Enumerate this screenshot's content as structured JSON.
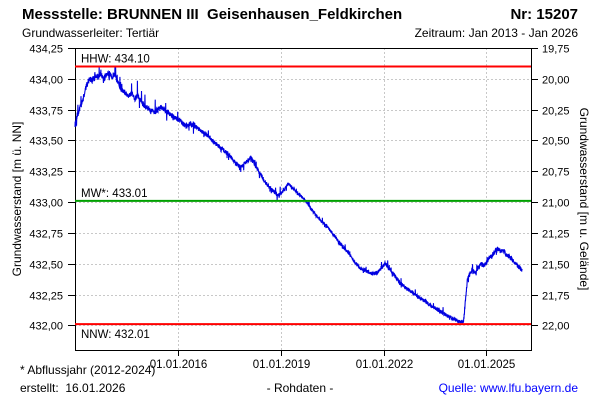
{
  "header": {
    "title": "Messstelle: BRUNNEN III  Geisenhausen_Feldkirchen",
    "number": "Nr: 15207",
    "aquifer": "Grundwasserleiter: Tertiär",
    "period": "Zeitraum: Jan 2013 - Jan 2026"
  },
  "footer": {
    "note": "* Abflussjahr (2012-2024)",
    "created": "erstellt:  16.01.2026",
    "center": "- Rohdaten -",
    "source": "Quelle: www.lfu.bayern.de",
    "source_color": "#0000ff"
  },
  "chart_data": {
    "type": "line",
    "title": "Grundwasserstand Messstelle 15207 BRUNNEN III Geisenhausen_Feldkirchen",
    "xlim_years": [
      2013.0,
      2026.3
    ],
    "x_ticks": [
      [
        2016,
        "01.01.2016"
      ],
      [
        2019,
        "01.01.2019"
      ],
      [
        2022,
        "01.01.2022"
      ],
      [
        2025,
        "01.01.2025"
      ]
    ],
    "y_left": {
      "title": "Grundwasserstand [m ü. NN]",
      "lim": [
        431.8,
        434.25
      ],
      "ticks": [
        [
          434.25,
          "434,25"
        ],
        [
          434.0,
          "434,00"
        ],
        [
          433.75,
          "433,75"
        ],
        [
          433.5,
          "433,50"
        ],
        [
          433.25,
          "433,25"
        ],
        [
          433.0,
          "433,00"
        ],
        [
          432.75,
          "432,75"
        ],
        [
          432.5,
          "432,50"
        ],
        [
          432.25,
          "432,25"
        ],
        [
          432.0,
          "432,00"
        ]
      ]
    },
    "y_right": {
      "title": "Grundwasserstand [m u. Gelände]",
      "ticks": [
        [
          434.25,
          "19,75"
        ],
        [
          434.0,
          "20,00"
        ],
        [
          433.75,
          "20,25"
        ],
        [
          433.5,
          "20,50"
        ],
        [
          433.25,
          "20,75"
        ],
        [
          433.0,
          "21,00"
        ],
        [
          432.75,
          "21,25"
        ],
        [
          432.5,
          "21,50"
        ],
        [
          432.25,
          "21,75"
        ],
        [
          432.0,
          "22,00"
        ]
      ]
    },
    "grid": {
      "color": "#c8c8c8",
      "dash": "2,2"
    },
    "axis_color": "#000000",
    "reference_lines": [
      {
        "name": "HHW",
        "value": 434.1,
        "label": "HHW: 434.10",
        "color": "#ff0000",
        "label_side": "above"
      },
      {
        "name": "MW",
        "value": 433.01,
        "label": "MW*: 433.01",
        "color": "#00a000",
        "label_side": "above"
      },
      {
        "name": "NNW",
        "value": 432.01,
        "label": "NNW: 432.01",
        "color": "#ff0000",
        "label_side": "below"
      }
    ],
    "series": [
      {
        "name": "Rohdaten",
        "color": "#0000e0",
        "clamp": [
          432.0,
          434.1
        ],
        "noise": {
          "seed": 1234,
          "step_years": 0.005
        },
        "anchors": [
          [
            2013.0,
            433.63
          ],
          [
            2013.08,
            433.72
          ],
          [
            2013.17,
            433.78
          ],
          [
            2013.25,
            433.85
          ],
          [
            2013.33,
            433.94
          ],
          [
            2013.42,
            434.0
          ],
          [
            2013.5,
            433.99
          ],
          [
            2013.58,
            434.03
          ],
          [
            2013.67,
            434.01
          ],
          [
            2013.75,
            434.05
          ],
          [
            2013.83,
            433.99
          ],
          [
            2013.92,
            434.03
          ],
          [
            2014.0,
            434.05
          ],
          [
            2014.08,
            434.02
          ],
          [
            2014.17,
            434.04
          ],
          [
            2014.25,
            433.97
          ],
          [
            2014.33,
            433.92
          ],
          [
            2014.42,
            433.9
          ],
          [
            2014.5,
            433.88
          ],
          [
            2014.58,
            433.86
          ],
          [
            2014.67,
            433.89
          ],
          [
            2014.75,
            433.84
          ],
          [
            2014.83,
            433.87
          ],
          [
            2014.92,
            433.82
          ],
          [
            2015.0,
            433.79
          ],
          [
            2015.17,
            433.75
          ],
          [
            2015.33,
            433.73
          ],
          [
            2015.5,
            433.77
          ],
          [
            2015.67,
            433.74
          ],
          [
            2015.83,
            433.7
          ],
          [
            2016.0,
            433.67
          ],
          [
            2016.17,
            433.63
          ],
          [
            2016.25,
            433.62
          ],
          [
            2016.42,
            433.64
          ],
          [
            2016.58,
            433.6
          ],
          [
            2016.75,
            433.56
          ],
          [
            2016.92,
            433.53
          ],
          [
            2017.0,
            433.5
          ],
          [
            2017.25,
            433.44
          ],
          [
            2017.5,
            433.38
          ],
          [
            2017.67,
            433.32
          ],
          [
            2017.83,
            433.28
          ],
          [
            2018.0,
            433.33
          ],
          [
            2018.13,
            433.36
          ],
          [
            2018.25,
            433.3
          ],
          [
            2018.42,
            433.22
          ],
          [
            2018.58,
            433.15
          ],
          [
            2018.75,
            433.1
          ],
          [
            2018.92,
            433.05
          ],
          [
            2019.08,
            433.09
          ],
          [
            2019.21,
            433.15
          ],
          [
            2019.33,
            433.12
          ],
          [
            2019.5,
            433.07
          ],
          [
            2019.67,
            433.03
          ],
          [
            2019.83,
            432.97
          ],
          [
            2020.0,
            432.9
          ],
          [
            2020.17,
            432.85
          ],
          [
            2020.33,
            432.81
          ],
          [
            2020.5,
            432.75
          ],
          [
            2020.67,
            432.69
          ],
          [
            2020.83,
            432.63
          ],
          [
            2021.0,
            432.58
          ],
          [
            2021.17,
            432.51
          ],
          [
            2021.33,
            432.46
          ],
          [
            2021.5,
            432.44
          ],
          [
            2021.67,
            432.42
          ],
          [
            2021.83,
            432.43
          ],
          [
            2021.95,
            432.47
          ],
          [
            2022.05,
            432.5
          ],
          [
            2022.17,
            432.46
          ],
          [
            2022.33,
            432.4
          ],
          [
            2022.5,
            432.34
          ],
          [
            2022.67,
            432.3
          ],
          [
            2022.83,
            432.27
          ],
          [
            2023.0,
            432.23
          ],
          [
            2023.17,
            432.2
          ],
          [
            2023.33,
            432.17
          ],
          [
            2023.5,
            432.14
          ],
          [
            2023.67,
            432.11
          ],
          [
            2023.83,
            432.08
          ],
          [
            2024.0,
            432.06
          ],
          [
            2024.13,
            432.04
          ],
          [
            2024.25,
            432.03
          ],
          [
            2024.33,
            432.02
          ],
          [
            2024.38,
            432.18
          ],
          [
            2024.44,
            432.36
          ],
          [
            2024.5,
            432.41
          ],
          [
            2024.58,
            432.45
          ],
          [
            2024.67,
            432.42
          ],
          [
            2024.75,
            432.46
          ],
          [
            2024.83,
            432.5
          ],
          [
            2024.92,
            432.48
          ],
          [
            2025.0,
            432.51
          ],
          [
            2025.08,
            432.55
          ],
          [
            2025.17,
            432.57
          ],
          [
            2025.25,
            432.6
          ],
          [
            2025.33,
            432.62
          ],
          [
            2025.42,
            432.6
          ],
          [
            2025.5,
            432.61
          ],
          [
            2025.58,
            432.57
          ],
          [
            2025.67,
            432.56
          ],
          [
            2025.75,
            432.53
          ],
          [
            2025.83,
            432.51
          ],
          [
            2025.92,
            432.48
          ],
          [
            2026.0,
            432.46
          ],
          [
            2026.04,
            432.45
          ]
        ]
      }
    ]
  }
}
